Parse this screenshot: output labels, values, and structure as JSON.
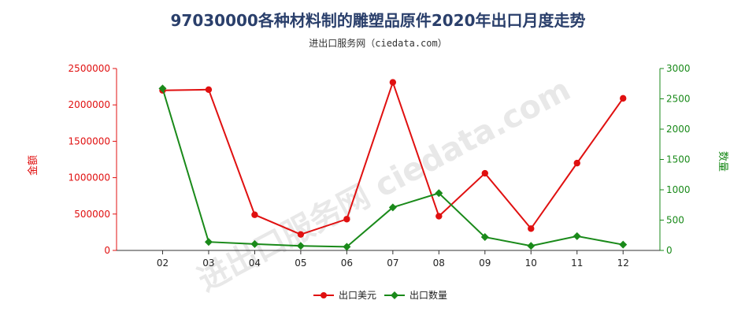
{
  "title": "97030000各种材料制的雕塑品原件2020年出口月度走势",
  "subtitle": "进出口服务网（ciedata.com）",
  "watermark": "进出口服务网 ciedata.com",
  "chart_data": {
    "type": "line",
    "categories": [
      "02",
      "03",
      "04",
      "05",
      "06",
      "07",
      "08",
      "09",
      "10",
      "11",
      "12"
    ],
    "y_left": {
      "label": "金额",
      "ticks": [
        "0",
        "500000",
        "1000000",
        "1500000",
        "2000000",
        "2500000"
      ],
      "range": [
        0,
        2500000
      ],
      "color": "#e01010"
    },
    "y_right": {
      "label": "数量",
      "ticks": [
        "0",
        "500",
        "1000",
        "1500",
        "2000",
        "2500",
        "3000"
      ],
      "range": [
        0,
        3000
      ],
      "color": "#1a8a1a"
    },
    "series": [
      {
        "name": "出口美元",
        "axis": "left",
        "color": "#e01010",
        "marker": "circle",
        "values": [
          2200000,
          2210000,
          490000,
          220000,
          430000,
          2310000,
          470000,
          1060000,
          300000,
          1200000,
          2090000
        ]
      },
      {
        "name": "出口数量",
        "axis": "right",
        "color": "#1a8a1a",
        "marker": "diamond",
        "values": [
          2670,
          140,
          105,
          75,
          60,
          710,
          945,
          220,
          75,
          235,
          95
        ]
      }
    ],
    "legend_position": "bottom-center",
    "grid": false
  }
}
